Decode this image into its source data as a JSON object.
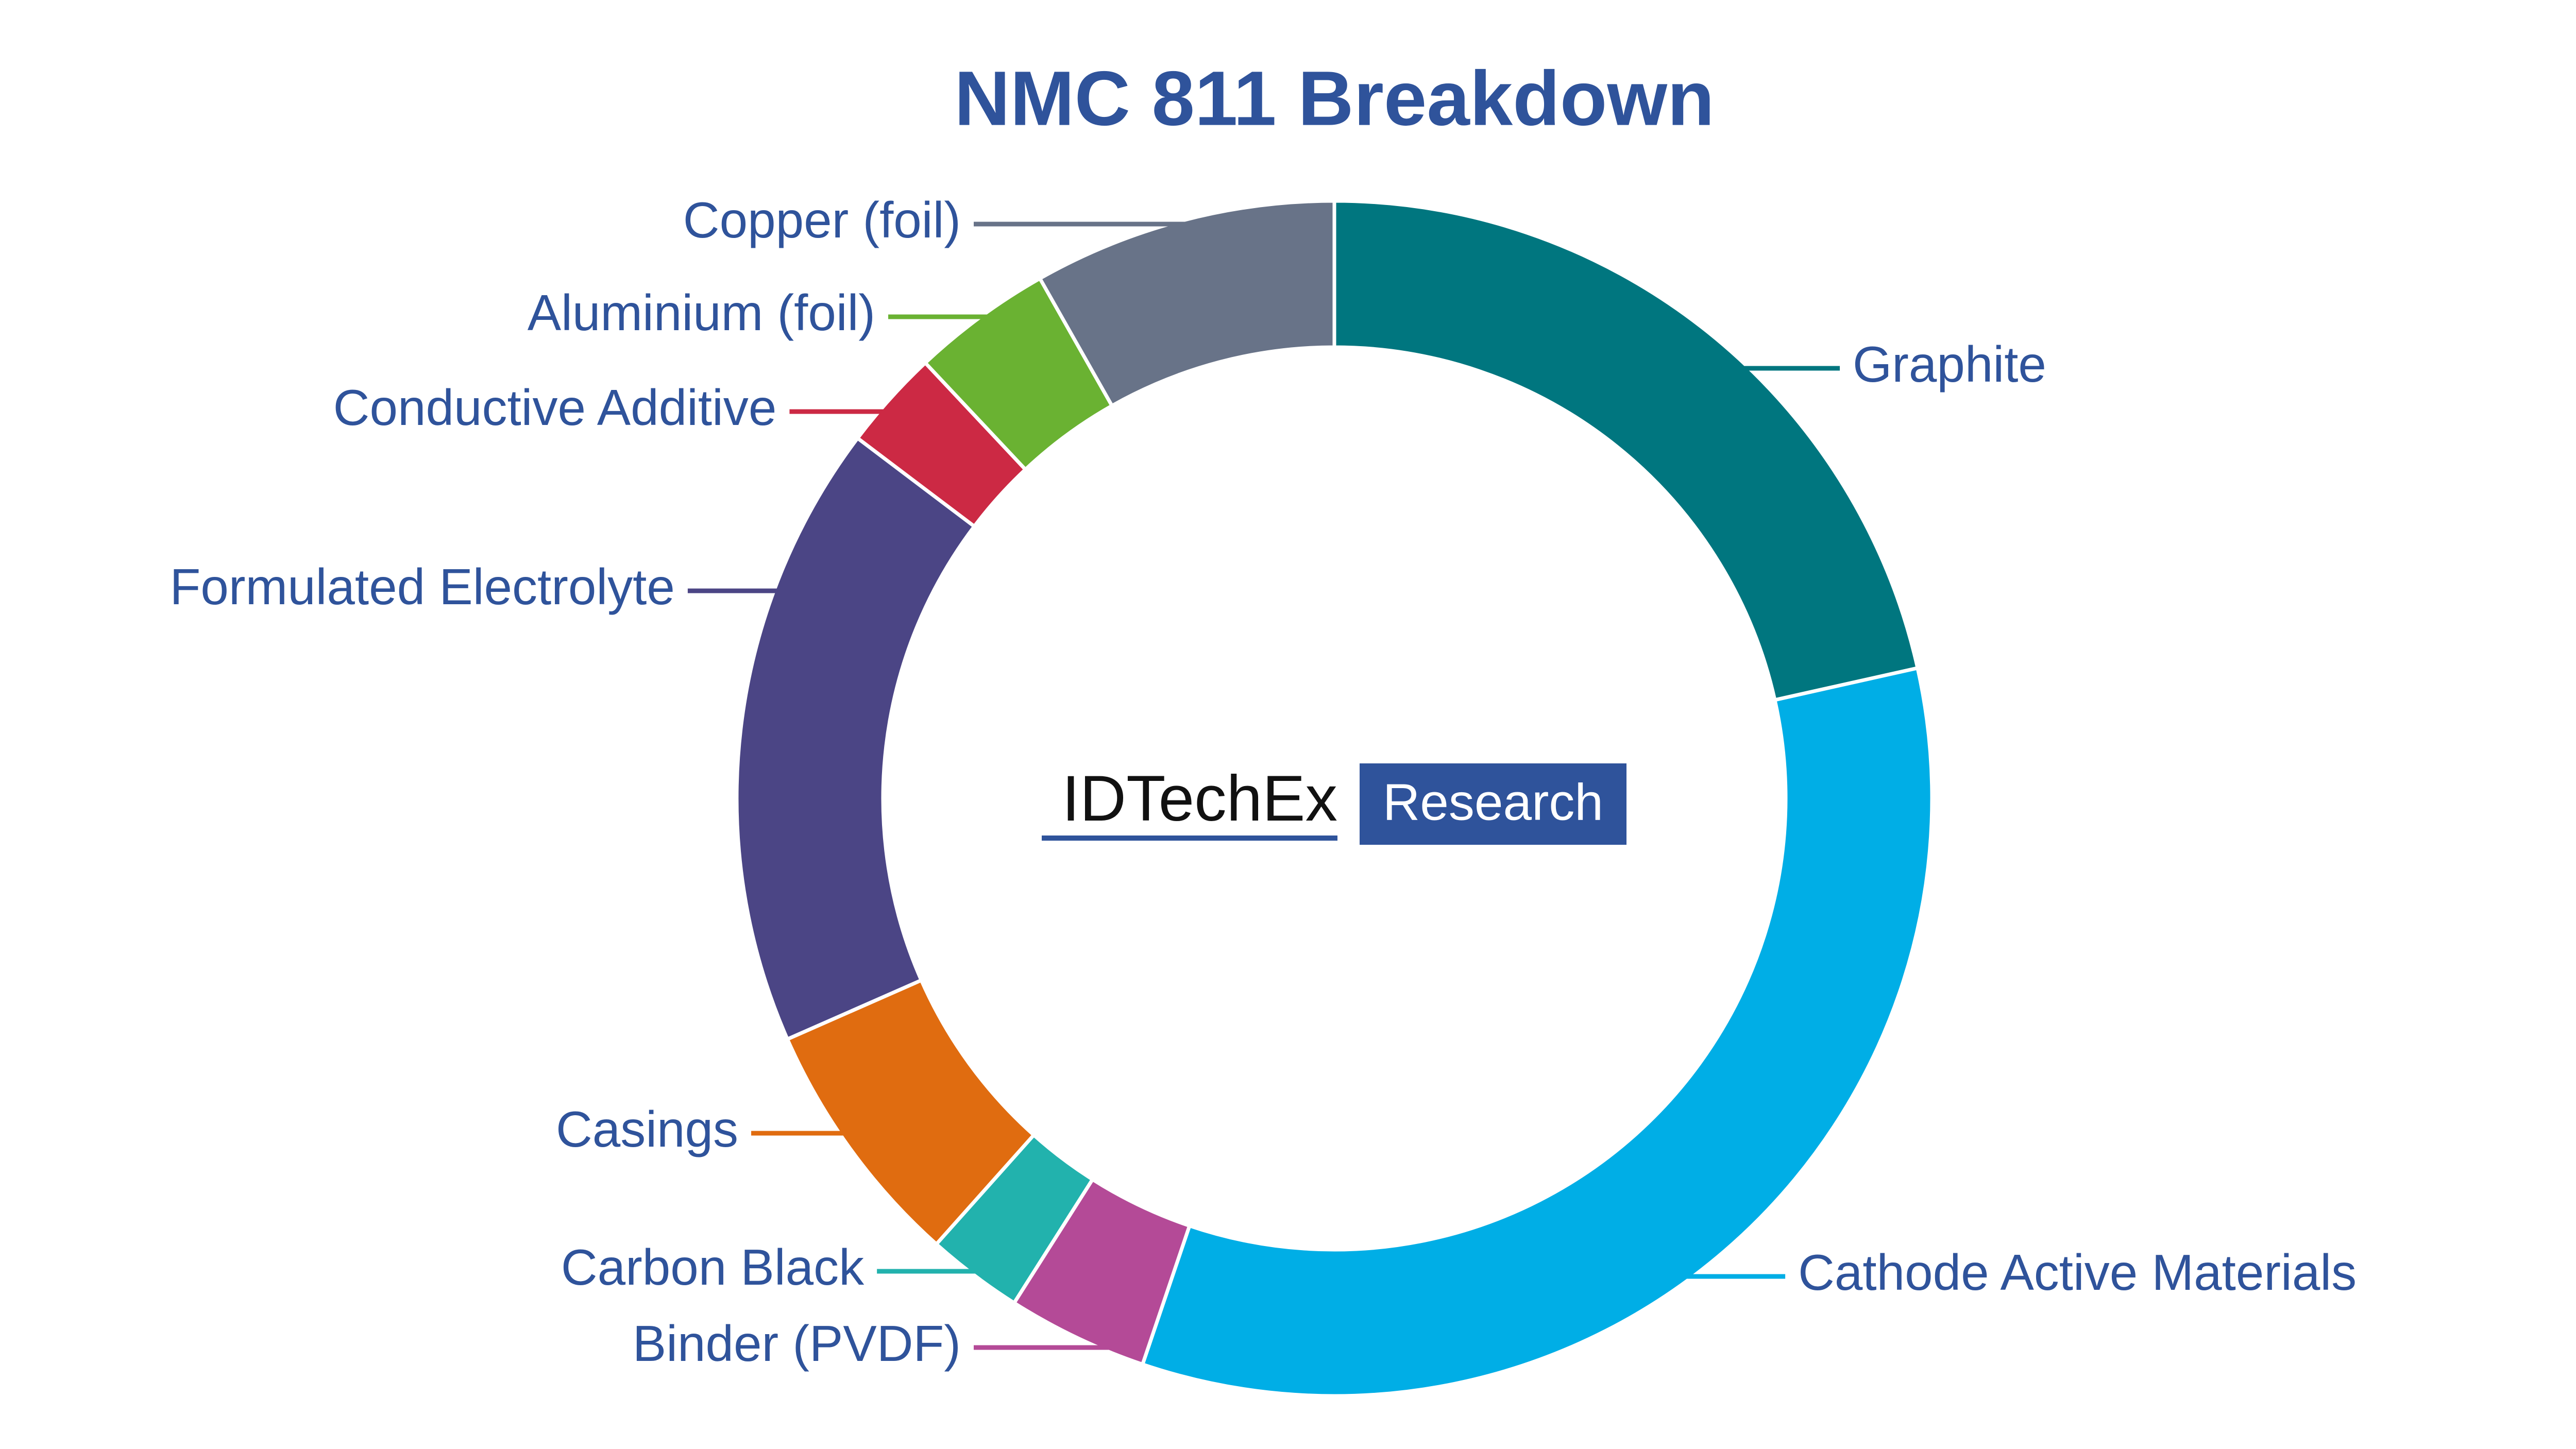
{
  "chart_data": {
    "type": "donut",
    "title": "NMC 811 Breakdown",
    "categories": [
      "Graphite",
      "Cathode Active Materials",
      "Binder (PVDF)",
      "Carbon Black",
      "Casings",
      "Formulated Electrolyte",
      "Conductive Additive",
      "Aluminium (foil)",
      "Copper (foil)"
    ],
    "values": [
      21.5,
      33.7,
      3.8,
      2.6,
      6.8,
      16.9,
      2.7,
      3.8,
      8.2
    ],
    "colors": [
      "#00767f",
      "#00aee6",
      "#b44a97",
      "#22b2ad",
      "#e06c10",
      "#4b4585",
      "#cc2944",
      "#6ab232",
      "#687388"
    ],
    "logo": {
      "name": "IDTechEx",
      "tag": "Research"
    }
  }
}
